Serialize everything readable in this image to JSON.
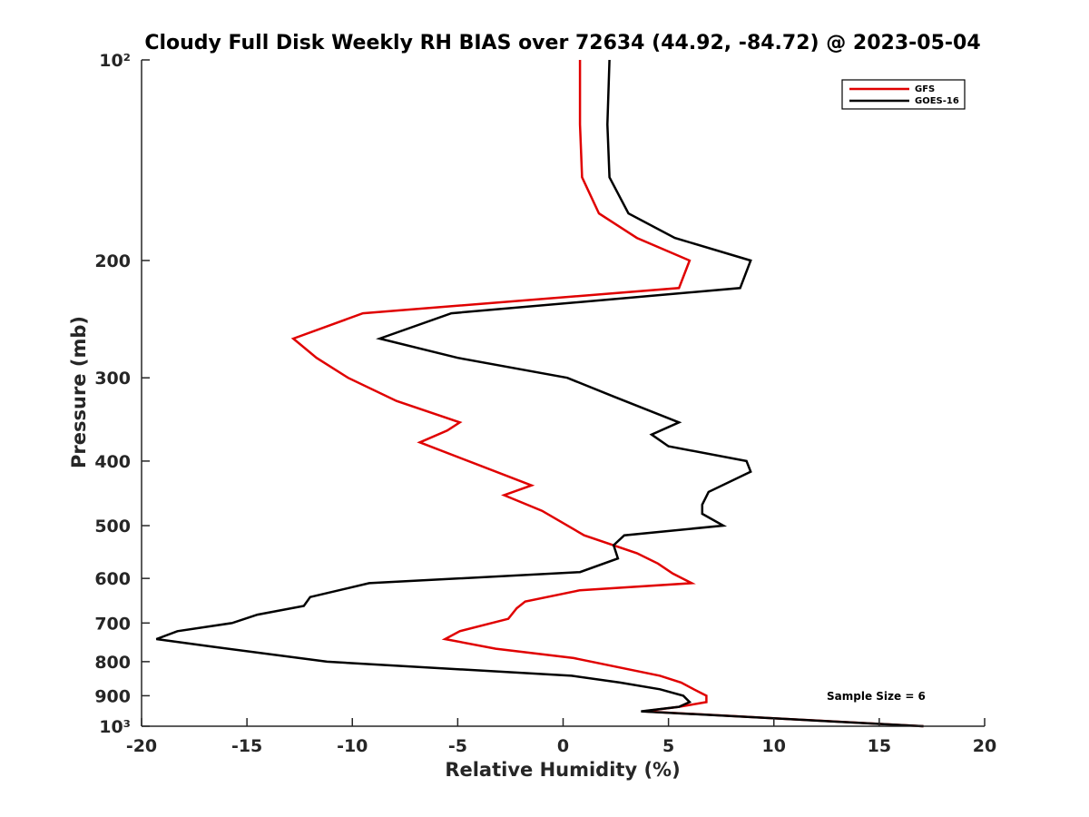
{
  "chart_data": {
    "type": "line",
    "title": "Cloudy Full Disk Weekly RH BIAS over 72634 (44.92, -84.72) @ 2023-05-04",
    "xlabel": "Relative Humidity (%)",
    "ylabel": "Pressure (mb)",
    "xlim": [
      -20,
      20
    ],
    "ylim": [
      100,
      1000
    ],
    "y_scale": "log",
    "y_reversed": true,
    "x_ticks": [
      -20,
      -15,
      -10,
      -5,
      0,
      5,
      10,
      15,
      20
    ],
    "x_tick_labels": [
      "-20",
      "-15",
      "-10",
      "-5",
      "0",
      "5",
      "10",
      "15",
      "20"
    ],
    "y_ticks": [
      100,
      200,
      300,
      400,
      500,
      600,
      700,
      800,
      900,
      1000
    ],
    "y_tick_labels": [
      "10²",
      "200",
      "300",
      "400",
      "500",
      "600",
      "700",
      "800",
      "900",
      "10³"
    ],
    "grid": false,
    "legend_position": "top-right",
    "annotation": "Sample Size = 6",
    "series": [
      {
        "name": "GFS",
        "color": "#e00000",
        "points": [
          [
            0.8,
            100
          ],
          [
            0.8,
            125
          ],
          [
            0.9,
            150
          ],
          [
            1.7,
            170
          ],
          [
            3.5,
            185
          ],
          [
            6.0,
            200
          ],
          [
            5.5,
            220
          ],
          [
            -9.5,
            240
          ],
          [
            -12.8,
            262
          ],
          [
            -11.7,
            280
          ],
          [
            -10.2,
            300
          ],
          [
            -7.9,
            325
          ],
          [
            -4.9,
            350
          ],
          [
            -5.5,
            360
          ],
          [
            -6.8,
            375
          ],
          [
            -1.5,
            435
          ],
          [
            -2.8,
            450
          ],
          [
            -1.0,
            475
          ],
          [
            1.0,
            517
          ],
          [
            3.5,
            550
          ],
          [
            4.5,
            570
          ],
          [
            5.2,
            590
          ],
          [
            6.1,
            610
          ],
          [
            0.8,
            625
          ],
          [
            -1.8,
            650
          ],
          [
            -2.2,
            665
          ],
          [
            -2.6,
            690
          ],
          [
            -4.9,
            720
          ],
          [
            -5.6,
            740
          ],
          [
            -3.2,
            765
          ],
          [
            0.5,
            790
          ],
          [
            4.6,
            840
          ],
          [
            5.6,
            860
          ],
          [
            6.2,
            880
          ],
          [
            6.8,
            900
          ],
          [
            6.8,
            920
          ],
          [
            5.5,
            935
          ],
          [
            3.8,
            950
          ],
          [
            17.1,
            1000
          ]
        ]
      },
      {
        "name": "GOES-16",
        "color": "#000000",
        "points": [
          [
            2.2,
            100
          ],
          [
            2.1,
            125
          ],
          [
            2.2,
            150
          ],
          [
            3.1,
            170
          ],
          [
            5.3,
            185
          ],
          [
            8.9,
            200
          ],
          [
            8.4,
            220
          ],
          [
            -5.3,
            240
          ],
          [
            -8.7,
            262
          ],
          [
            -5.0,
            280
          ],
          [
            0.2,
            300
          ],
          [
            2.4,
            320
          ],
          [
            5.5,
            350
          ],
          [
            4.2,
            365
          ],
          [
            5.0,
            380
          ],
          [
            8.7,
            400
          ],
          [
            8.9,
            415
          ],
          [
            6.9,
            445
          ],
          [
            6.6,
            465
          ],
          [
            6.6,
            480
          ],
          [
            7.6,
            500
          ],
          [
            2.9,
            517
          ],
          [
            2.4,
            535
          ],
          [
            2.6,
            560
          ],
          [
            0.8,
            587
          ],
          [
            -9.2,
            610
          ],
          [
            -12.0,
            640
          ],
          [
            -12.3,
            660
          ],
          [
            -14.5,
            680
          ],
          [
            -15.7,
            700
          ],
          [
            -18.3,
            720
          ],
          [
            -19.3,
            740
          ],
          [
            -16.6,
            760
          ],
          [
            -11.2,
            800
          ],
          [
            0.4,
            840
          ],
          [
            2.7,
            860
          ],
          [
            4.6,
            880
          ],
          [
            5.7,
            900
          ],
          [
            6.0,
            920
          ],
          [
            5.5,
            935
          ],
          [
            3.7,
            950
          ],
          [
            17.1,
            1000
          ]
        ]
      }
    ]
  }
}
